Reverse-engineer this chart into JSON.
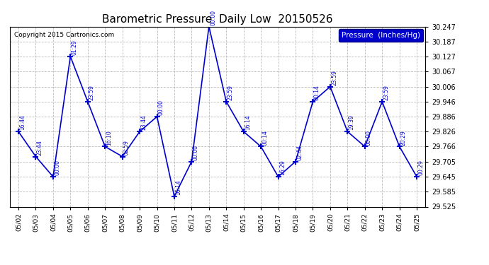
{
  "title": "Barometric Pressure  Daily Low  20150526",
  "copyright": "Copyright 2015 Cartronics.com",
  "legend_label": "Pressure  (Inches/Hg)",
  "background_color": "#ffffff",
  "plot_bg_color": "#ffffff",
  "grid_color": "#aaaaaa",
  "line_color": "#0000cc",
  "marker_color": "#0000cc",
  "annotation_color": "#0000cc",
  "dates": [
    "05/02",
    "05/03",
    "05/04",
    "05/05",
    "05/06",
    "05/07",
    "05/08",
    "05/09",
    "05/10",
    "05/11",
    "05/12",
    "05/13",
    "05/14",
    "05/15",
    "05/16",
    "05/17",
    "05/18",
    "05/19",
    "05/20",
    "05/21",
    "05/22",
    "05/23",
    "05/24",
    "05/25"
  ],
  "values": [
    29.826,
    29.726,
    29.645,
    30.127,
    29.946,
    29.766,
    29.726,
    29.826,
    29.886,
    29.566,
    29.706,
    30.247,
    29.946,
    29.826,
    29.766,
    29.645,
    29.706,
    29.946,
    30.006,
    29.826,
    29.766,
    29.946,
    29.766,
    29.645
  ],
  "time_labels": [
    "16:44",
    "23:44",
    "00:00",
    "01:29",
    "23:59",
    "16:10",
    "02:59",
    "23:44",
    "00:00",
    "16:14",
    "00:00",
    "00:00",
    "23:59",
    "16:14",
    "00:14",
    "16:29",
    "02:44",
    "00:14",
    "23:59",
    "19:39",
    "00:00",
    "23:59",
    "20:29",
    "00:29"
  ],
  "ylim_min": 29.525,
  "ylim_max": 30.247,
  "yticks": [
    29.525,
    29.585,
    29.645,
    29.705,
    29.766,
    29.826,
    29.886,
    29.946,
    30.006,
    30.067,
    30.127,
    30.187,
    30.247
  ]
}
